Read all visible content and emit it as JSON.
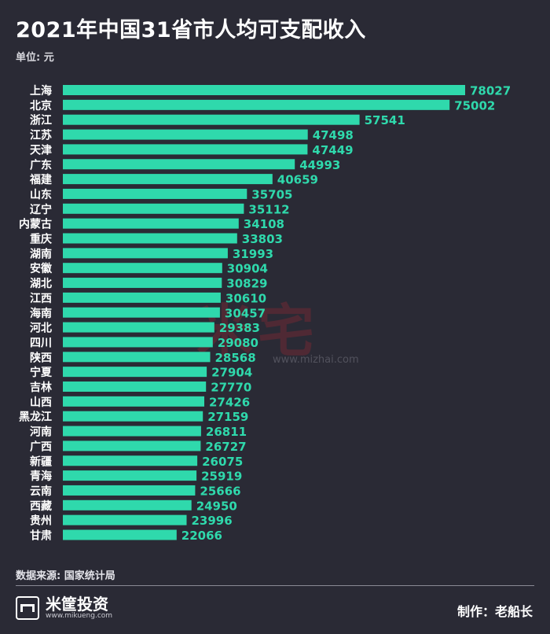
{
  "title": "2021年中国31省市人均可支配收入",
  "unit_label": "单位: 元",
  "source_label": "数据来源: 国家统计局",
  "brand": {
    "name": "米筐投资",
    "url": "www.mikueng.com"
  },
  "maker_label": "制作：老船长",
  "watermark": {
    "text": "米宅",
    "url": "www.mizhai.com"
  },
  "colors": {
    "background": "#2a2a35",
    "bar": "#2fd9ac",
    "value_text": "#2fd9ac"
  },
  "chart_data": {
    "type": "bar",
    "orientation": "horizontal",
    "title": "2021年中国31省市人均可支配收入",
    "ylabel": "单位: 元",
    "categories": [
      "上海",
      "北京",
      "浙江",
      "江苏",
      "天津",
      "广东",
      "福建",
      "山东",
      "辽宁",
      "内蒙古",
      "重庆",
      "湖南",
      "安徽",
      "湖北",
      "江西",
      "海南",
      "河北",
      "四川",
      "陕西",
      "宁夏",
      "吉林",
      "山西",
      "黑龙江",
      "河南",
      "广西",
      "新疆",
      "青海",
      "云南",
      "西藏",
      "贵州",
      "甘肃"
    ],
    "values": [
      78027,
      75002,
      57541,
      47498,
      47449,
      44993,
      40659,
      35705,
      35112,
      34108,
      33803,
      31993,
      30904,
      30829,
      30610,
      30457,
      29383,
      29080,
      28568,
      27904,
      27770,
      27426,
      27159,
      26811,
      26727,
      26075,
      25919,
      25666,
      24950,
      23996,
      22066
    ],
    "xlim": [
      0,
      78027
    ],
    "grid": false,
    "legend": "none",
    "data_labels": true
  }
}
